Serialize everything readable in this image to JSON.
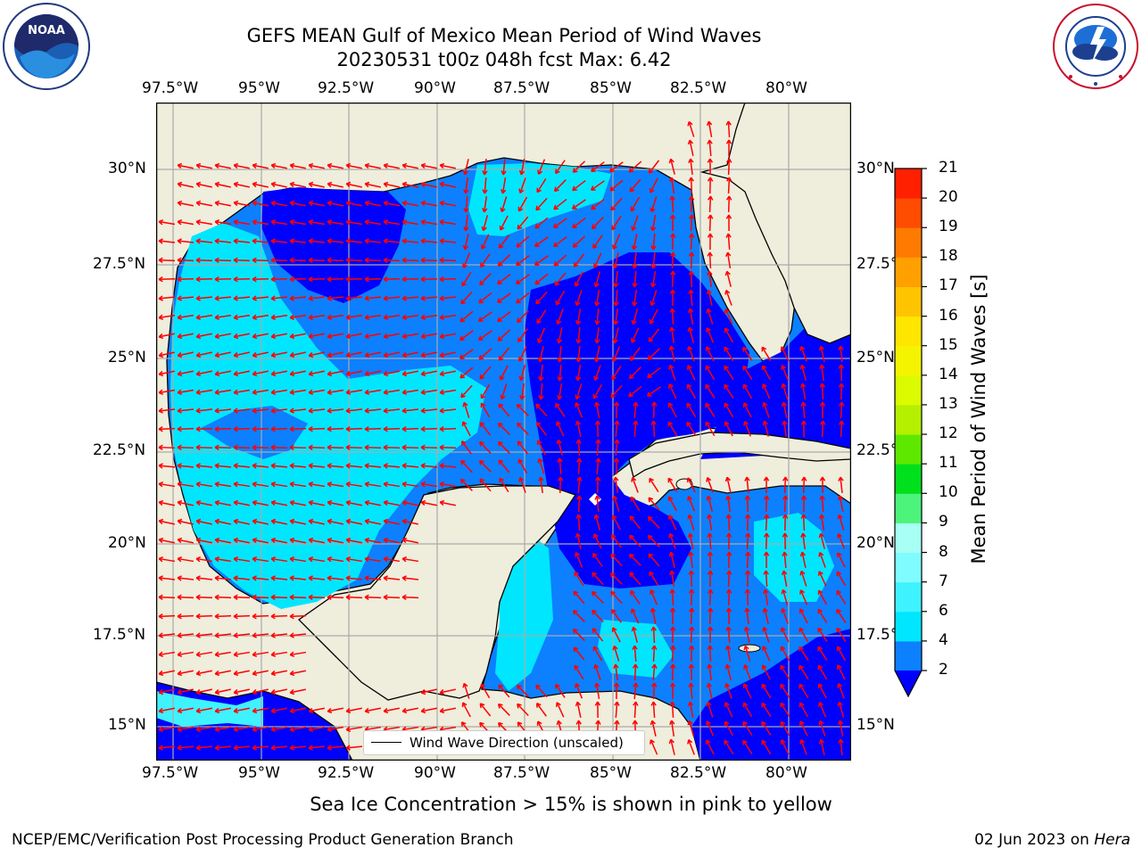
{
  "header": {
    "title_line1": "GEFS MEAN Gulf of Mexico Mean Period of Wind Waves",
    "title_line2": "20230531 t00z 048h fcst   Max: 6.42"
  },
  "logos": {
    "noaa_text": "NOAA",
    "noaa_ring": "NATIONAL OCEANIC AND ATMOSPHERIC ADMINISTRATION · U.S. DEPARTMENT OF COMMERCE",
    "nws_ring": "NATIONAL WEATHER SERVICE"
  },
  "map": {
    "lon_ticks": [
      "97.5°W",
      "95°W",
      "92.5°W",
      "90°W",
      "87.5°W",
      "85°W",
      "82.5°W",
      "80°W"
    ],
    "lat_ticks": [
      "30°N",
      "27.5°N",
      "25°N",
      "22.5°N",
      "20°N",
      "17.5°N",
      "15°N"
    ],
    "land_color": "#efeddc",
    "legend_label": "Wind Wave Direction (unscaled)",
    "arrow_color": "#ff0000"
  },
  "colorbar": {
    "label": "Mean Period of Wind Waves [s]",
    "ticks": [
      "2",
      "4",
      "6",
      "7",
      "8",
      "9",
      "10",
      "11",
      "12",
      "13",
      "14",
      "15",
      "16",
      "17",
      "18",
      "19",
      "20",
      "21"
    ],
    "colors": [
      "#0c80ff",
      "#00e6ff",
      "#3ff2ff",
      "#7ffcff",
      "#a8fff4",
      "#4cf47c",
      "#00e01c",
      "#5ee800",
      "#b4f000",
      "#dcfa00",
      "#f4f400",
      "#ffe600",
      "#ffc400",
      "#ffa000",
      "#ff7a00",
      "#ff4c00",
      "#ff2000"
    ],
    "under_color": "#0000ff"
  },
  "caption": "Sea Ice Concentration > 15% is shown in pink to yellow",
  "footer": {
    "left": "NCEP/EMC/Verification Post Processing Product Generation Branch",
    "right_date": "02 Jun 2023 on ",
    "right_machine": "Hera"
  }
}
